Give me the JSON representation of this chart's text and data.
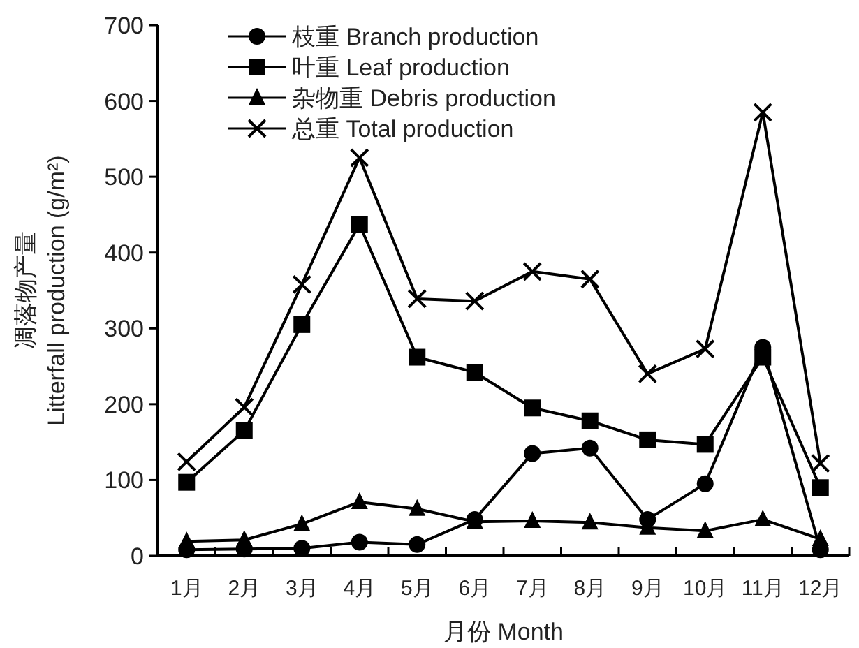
{
  "chart_data": {
    "type": "line",
    "xlabel": "月份  Month",
    "ylabel": "凋落物产量\nLitterfall production (g/m²)",
    "categories": [
      "1月",
      "2月",
      "3月",
      "4月",
      "5月",
      "6月",
      "7月",
      "8月",
      "9月",
      "10月",
      "11月",
      "12月"
    ],
    "ylim": [
      0,
      700
    ],
    "yticks": [
      0,
      100,
      200,
      300,
      400,
      500,
      600,
      700
    ],
    "grid": false,
    "legend": "top left",
    "line_style": "solid",
    "series": [
      {
        "name": "枝重  Branch production",
        "color": "#000000",
        "marker": "circle",
        "values": [
          8,
          9,
          10,
          18,
          15,
          48,
          135,
          142,
          48,
          95,
          275,
          8
        ]
      },
      {
        "name": "叶重  Leaf production",
        "color": "#000000",
        "marker": "square",
        "values": [
          97,
          165,
          305,
          437,
          262,
          242,
          195,
          178,
          153,
          147,
          262,
          90
        ]
      },
      {
        "name": "杂物重  Debris production",
        "color": "#000000",
        "marker": "triangle",
        "values": [
          19,
          21,
          42,
          71,
          62,
          45,
          46,
          44,
          37,
          33,
          48,
          22
        ]
      },
      {
        "name": "总重  Total production",
        "color": "#000000",
        "marker": "cross",
        "values": [
          124,
          196,
          358,
          525,
          339,
          336,
          375,
          365,
          240,
          273,
          585,
          122
        ]
      }
    ]
  }
}
